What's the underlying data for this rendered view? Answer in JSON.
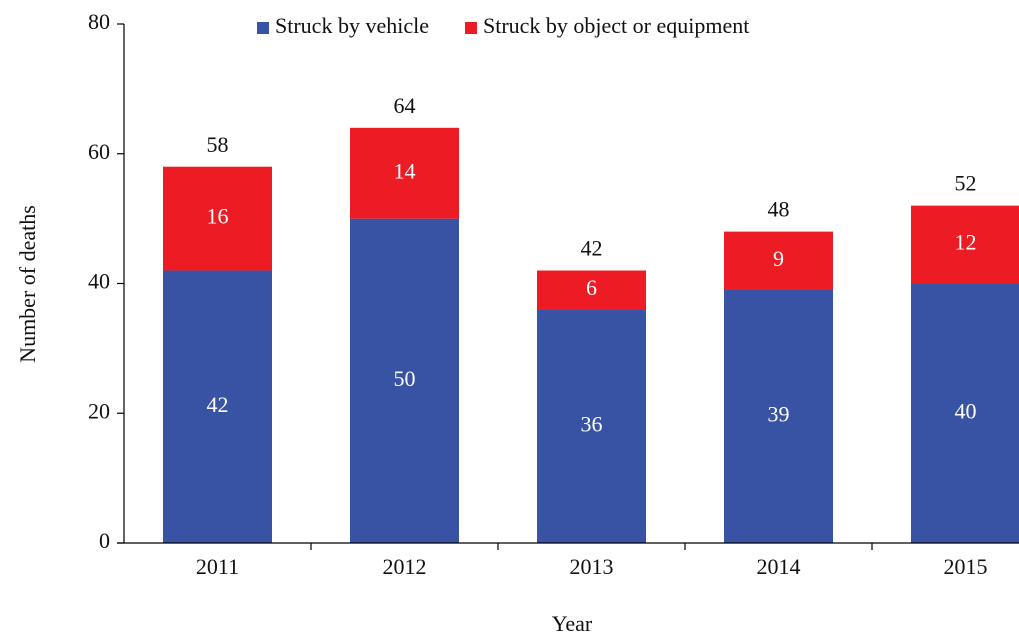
{
  "chart_data": {
    "type": "stacked_bar",
    "categories": [
      "2011",
      "2012",
      "2013",
      "2014",
      "2015"
    ],
    "series": [
      {
        "name": "Struck by vehicle",
        "color": "#3953a4",
        "values": [
          42,
          50,
          36,
          39,
          40
        ]
      },
      {
        "name": "Struck by object or equipment",
        "color": "#ed1c24",
        "values": [
          16,
          14,
          6,
          9,
          12
        ]
      }
    ],
    "totals": [
      58,
      64,
      42,
      48,
      52
    ],
    "ylim": [
      0,
      80
    ],
    "yticks": [
      0,
      20,
      40,
      60,
      80
    ],
    "y_label": "Number of deaths",
    "x_label": "Year",
    "grid": false
  }
}
